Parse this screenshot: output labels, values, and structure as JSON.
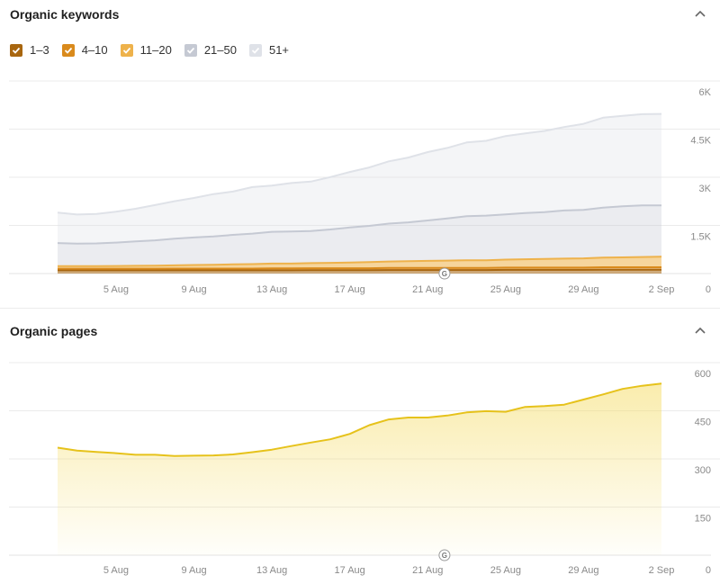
{
  "sections": {
    "keywords": {
      "title": "Organic keywords"
    },
    "pages": {
      "title": "Organic pages"
    }
  },
  "legend": [
    {
      "label": "1–3",
      "color": "#a8660f",
      "checked": true
    },
    {
      "label": "4–10",
      "color": "#d98a1c",
      "checked": true
    },
    {
      "label": "11–20",
      "color": "#eeb24b",
      "checked": true
    },
    {
      "label": "21–50",
      "color": "#c5c9d3",
      "checked": true
    },
    {
      "label": "51+",
      "color": "#dfe2e8",
      "checked": true
    }
  ],
  "icons": {
    "collapse": "chevron-up-icon",
    "event_marker": "google-update-icon"
  },
  "chart_data": [
    {
      "type": "area",
      "stacked": true,
      "x_ticks": [
        "5 Aug",
        "9 Aug",
        "13 Aug",
        "17 Aug",
        "21 Aug",
        "25 Aug",
        "29 Aug",
        "2 Sep"
      ],
      "y_ticks": [
        "6K",
        "4.5K",
        "3K",
        "1.5K",
        "0"
      ],
      "ylim": [
        0,
        6000
      ],
      "grid": true,
      "event_marker": {
        "label": "G",
        "x_index": 20
      },
      "series": [
        {
          "name": "1–3",
          "color": "#a8660f",
          "values": [
            100,
            100,
            100,
            100,
            100,
            100,
            100,
            100,
            100,
            100,
            100,
            100,
            100,
            105,
            105,
            105,
            105,
            110,
            110,
            110,
            110,
            110,
            110,
            115,
            115,
            115,
            115,
            115,
            120,
            120,
            120,
            120
          ]
        },
        {
          "name": "4–10",
          "color": "#d98a1c",
          "values": [
            50,
            50,
            50,
            50,
            50,
            50,
            55,
            55,
            55,
            55,
            55,
            60,
            60,
            60,
            60,
            60,
            60,
            65,
            65,
            65,
            65,
            65,
            65,
            70,
            70,
            70,
            70,
            70,
            75,
            75,
            75,
            75
          ]
        },
        {
          "name": "11–20",
          "color": "#eeb24b",
          "values": [
            80,
            80,
            80,
            85,
            90,
            95,
            100,
            110,
            120,
            130,
            140,
            150,
            150,
            160,
            170,
            180,
            190,
            200,
            210,
            220,
            230,
            240,
            240,
            250,
            260,
            270,
            280,
            290,
            300,
            310,
            320,
            330
          ]
        },
        {
          "name": "21–50",
          "color": "#c5c9d3",
          "values": [
            720,
            700,
            710,
            730,
            760,
            790,
            830,
            860,
            880,
            920,
            950,
            990,
            1000,
            1000,
            1040,
            1090,
            1130,
            1180,
            1210,
            1260,
            1310,
            1370,
            1390,
            1410,
            1440,
            1460,
            1500,
            1510,
            1560,
            1590,
            1610,
            1600
          ]
        },
        {
          "name": "51+",
          "color": "#dfe2e8",
          "values": [
            950,
            910,
            920,
            960,
            1020,
            1100,
            1170,
            1230,
            1320,
            1350,
            1450,
            1440,
            1510,
            1540,
            1630,
            1730,
            1820,
            1940,
            2020,
            2130,
            2200,
            2300,
            2330,
            2440,
            2480,
            2530,
            2600,
            2680,
            2800,
            2820,
            2840,
            2850
          ]
        }
      ]
    },
    {
      "type": "area",
      "x_ticks": [
        "5 Aug",
        "9 Aug",
        "13 Aug",
        "17 Aug",
        "21 Aug",
        "25 Aug",
        "29 Aug",
        "2 Sep"
      ],
      "y_ticks": [
        "600",
        "450",
        "300",
        "150",
        "0"
      ],
      "ylim": [
        0,
        600
      ],
      "grid": true,
      "event_marker": {
        "label": "G",
        "x_index": 20
      },
      "series": [
        {
          "name": "Organic pages",
          "color": "#e6c21b",
          "values": [
            335,
            326,
            322,
            318,
            313,
            313,
            309,
            310,
            311,
            314,
            321,
            329,
            340,
            351,
            361,
            378,
            405,
            423,
            429,
            429,
            435,
            445,
            449,
            447,
            462,
            465,
            469,
            485,
            501,
            518,
            528,
            535
          ]
        }
      ]
    }
  ]
}
